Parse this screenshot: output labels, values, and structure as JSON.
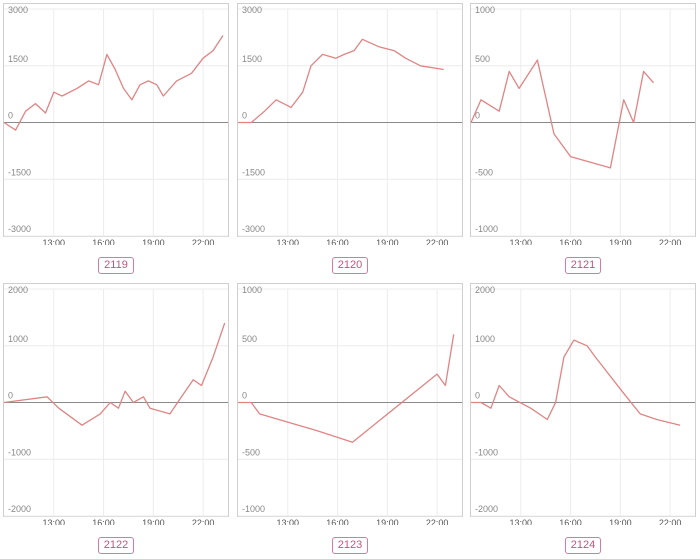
{
  "colors": {
    "line": "#e08484",
    "label": "#c0557f",
    "frame": "#cfcfcf"
  },
  "chart_data": [
    {
      "type": "line",
      "label": "2119",
      "ylim": [
        -3000,
        3000
      ],
      "yticks": [
        3000,
        1500,
        0,
        -1500,
        -3000
      ],
      "xticks": [
        "13:00",
        "16:00",
        "19:00",
        "22:00"
      ],
      "xtick_pos": [
        13,
        16,
        19,
        22
      ],
      "xlim": [
        10.0,
        23.5
      ],
      "x": [
        10.0,
        10.7,
        11.3,
        11.9,
        12.5,
        13.0,
        13.5,
        14.4,
        15.1,
        15.7,
        16.2,
        16.7,
        17.2,
        17.7,
        18.2,
        18.7,
        19.2,
        19.6,
        20.4,
        21.3,
        22.0,
        22.6,
        23.2
      ],
      "values": [
        0,
        -200,
        300,
        500,
        250,
        800,
        700,
        900,
        1100,
        1000,
        1800,
        1400,
        900,
        600,
        1000,
        1100,
        1000,
        700,
        1100,
        1300,
        1700,
        1900,
        2300
      ]
    },
    {
      "type": "line",
      "label": "2120",
      "ylim": [
        -3000,
        3000
      ],
      "yticks": [
        3000,
        1500,
        0,
        -1500,
        -3000
      ],
      "xticks": [
        "13:00",
        "16:00",
        "19:00",
        "22:00"
      ],
      "xtick_pos": [
        13,
        16,
        19,
        22
      ],
      "xlim": [
        10.0,
        23.5
      ],
      "x": [
        10.0,
        10.8,
        11.6,
        12.3,
        13.2,
        13.9,
        14.4,
        15.1,
        15.9,
        16.4,
        17.0,
        17.5,
        18.5,
        19.4,
        20.1,
        21.0,
        22.4
      ],
      "values": [
        0,
        0,
        300,
        600,
        400,
        800,
        1500,
        1800,
        1700,
        1800,
        1900,
        2200,
        2000,
        1900,
        1700,
        1500,
        1400
      ]
    },
    {
      "type": "line",
      "label": "2121",
      "ylim": [
        -1000,
        1000
      ],
      "yticks": [
        1000,
        500,
        0,
        -500,
        -1000
      ],
      "xticks": [
        "13:00",
        "16:00",
        "19:00",
        "22:00"
      ],
      "xtick_pos": [
        13,
        16,
        19,
        22
      ],
      "xlim": [
        10.0,
        23.5
      ],
      "x": [
        10.0,
        10.6,
        11.7,
        12.3,
        12.9,
        14.0,
        15.0,
        16.0,
        18.4,
        19.2,
        19.8,
        20.4,
        21.0
      ],
      "values": [
        0,
        200,
        100,
        450,
        300,
        550,
        -100,
        -300,
        -400,
        200,
        0,
        450,
        350
      ]
    },
    {
      "type": "line",
      "label": "2122",
      "ylim": [
        -2000,
        2000
      ],
      "yticks": [
        2000,
        1000,
        0,
        -1000,
        -2000
      ],
      "xticks": [
        "13:00",
        "16:00",
        "19:00",
        "22:00"
      ],
      "xtick_pos": [
        13,
        16,
        19,
        22
      ],
      "xlim": [
        10.0,
        23.5
      ],
      "x": [
        10.0,
        12.6,
        13.3,
        14.7,
        15.8,
        16.4,
        16.9,
        17.3,
        17.8,
        18.4,
        18.8,
        20.0,
        20.7,
        21.4,
        21.9,
        22.6,
        23.3
      ],
      "values": [
        0,
        100,
        -100,
        -400,
        -200,
        0,
        -100,
        200,
        0,
        100,
        -100,
        -200,
        100,
        400,
        300,
        800,
        1400
      ]
    },
    {
      "type": "line",
      "label": "2123",
      "ylim": [
        -1000,
        1000
      ],
      "yticks": [
        1000,
        500,
        0,
        -500,
        -1000
      ],
      "xticks": [
        "13:00",
        "16:00",
        "19:00",
        "22:00"
      ],
      "xtick_pos": [
        13,
        16,
        19,
        22
      ],
      "xlim": [
        10.0,
        23.5
      ],
      "x": [
        10.0,
        10.8,
        11.3,
        14.8,
        16.9,
        22.0,
        22.5,
        23.0
      ],
      "values": [
        0,
        0,
        -100,
        -250,
        -350,
        250,
        150,
        600
      ]
    },
    {
      "type": "line",
      "label": "2124",
      "ylim": [
        -2000,
        2000
      ],
      "yticks": [
        2000,
        1000,
        0,
        -1000,
        -2000
      ],
      "xticks": [
        "13:00",
        "16:00",
        "19:00",
        "22:00"
      ],
      "xtick_pos": [
        13,
        16,
        19,
        22
      ],
      "xlim": [
        10.0,
        23.5
      ],
      "x": [
        10.0,
        10.6,
        11.2,
        11.7,
        12.3,
        13.6,
        14.6,
        15.1,
        15.6,
        16.2,
        17.0,
        17.5,
        18.3,
        19.1,
        20.2,
        21.2,
        22.6
      ],
      "values": [
        0,
        0,
        -100,
        300,
        100,
        -100,
        -300,
        0,
        800,
        1100,
        1000,
        800,
        500,
        200,
        -200,
        -300,
        -400
      ]
    }
  ]
}
